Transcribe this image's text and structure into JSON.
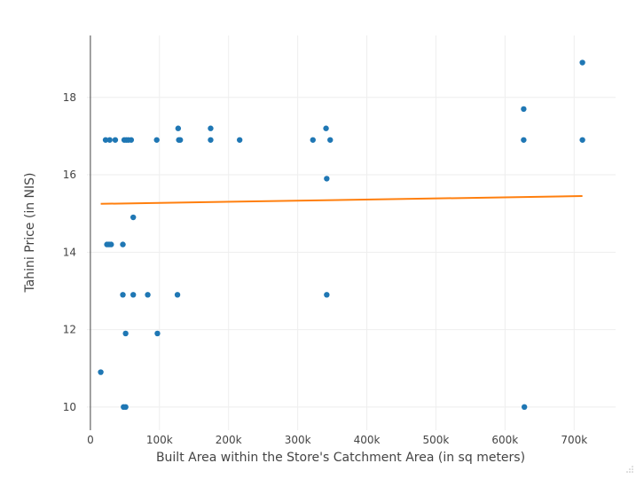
{
  "chart_data": {
    "type": "scatter",
    "title": "",
    "xlabel": "Built Area within the Store's Catchment Area (in sq meters)",
    "ylabel": "Tahini Price (in NIS)",
    "xlim": [
      -5000,
      760000
    ],
    "ylim": [
      9.4,
      19.6
    ],
    "x_ticks": [
      0,
      100000,
      200000,
      300000,
      400000,
      500000,
      600000,
      700000
    ],
    "x_tick_labels": [
      "0",
      "100k",
      "200k",
      "300k",
      "400k",
      "500k",
      "600k",
      "700k"
    ],
    "y_ticks": [
      10,
      12,
      14,
      16,
      18
    ],
    "y_tick_labels": [
      "10",
      "12",
      "14",
      "16",
      "18"
    ],
    "grid": true,
    "colors": {
      "points": "#1f77b4",
      "trend": "#ff7f0e",
      "grid": "#eeeeee",
      "axis": "#444444"
    },
    "series": [
      {
        "mode": "markers",
        "x": [
          15000,
          22000,
          24000,
          27000,
          28000,
          30000,
          36000,
          47000,
          47000,
          48000,
          49000,
          51000,
          51000,
          52000,
          55000,
          59000,
          62000,
          62000,
          83000,
          96000,
          97000,
          126000,
          127000,
          128000,
          130000,
          174000,
          174000,
          216000,
          322000,
          341000,
          342000,
          342000,
          347000,
          627000,
          627000,
          628000,
          712000,
          712000
        ],
        "y": [
          10.9,
          16.9,
          14.2,
          14.2,
          16.9,
          14.2,
          16.9,
          14.2,
          12.9,
          10.0,
          16.9,
          10.0,
          11.9,
          16.9,
          16.9,
          16.9,
          14.9,
          12.9,
          12.9,
          16.9,
          11.9,
          12.9,
          17.2,
          16.9,
          16.9,
          17.2,
          16.9,
          16.9,
          16.9,
          17.2,
          15.9,
          12.9,
          16.9,
          17.7,
          16.9,
          10.0,
          18.9,
          16.9
        ]
      },
      {
        "mode": "lines",
        "x": [
          15000,
          712000
        ],
        "y": [
          15.25,
          15.45
        ]
      }
    ]
  }
}
